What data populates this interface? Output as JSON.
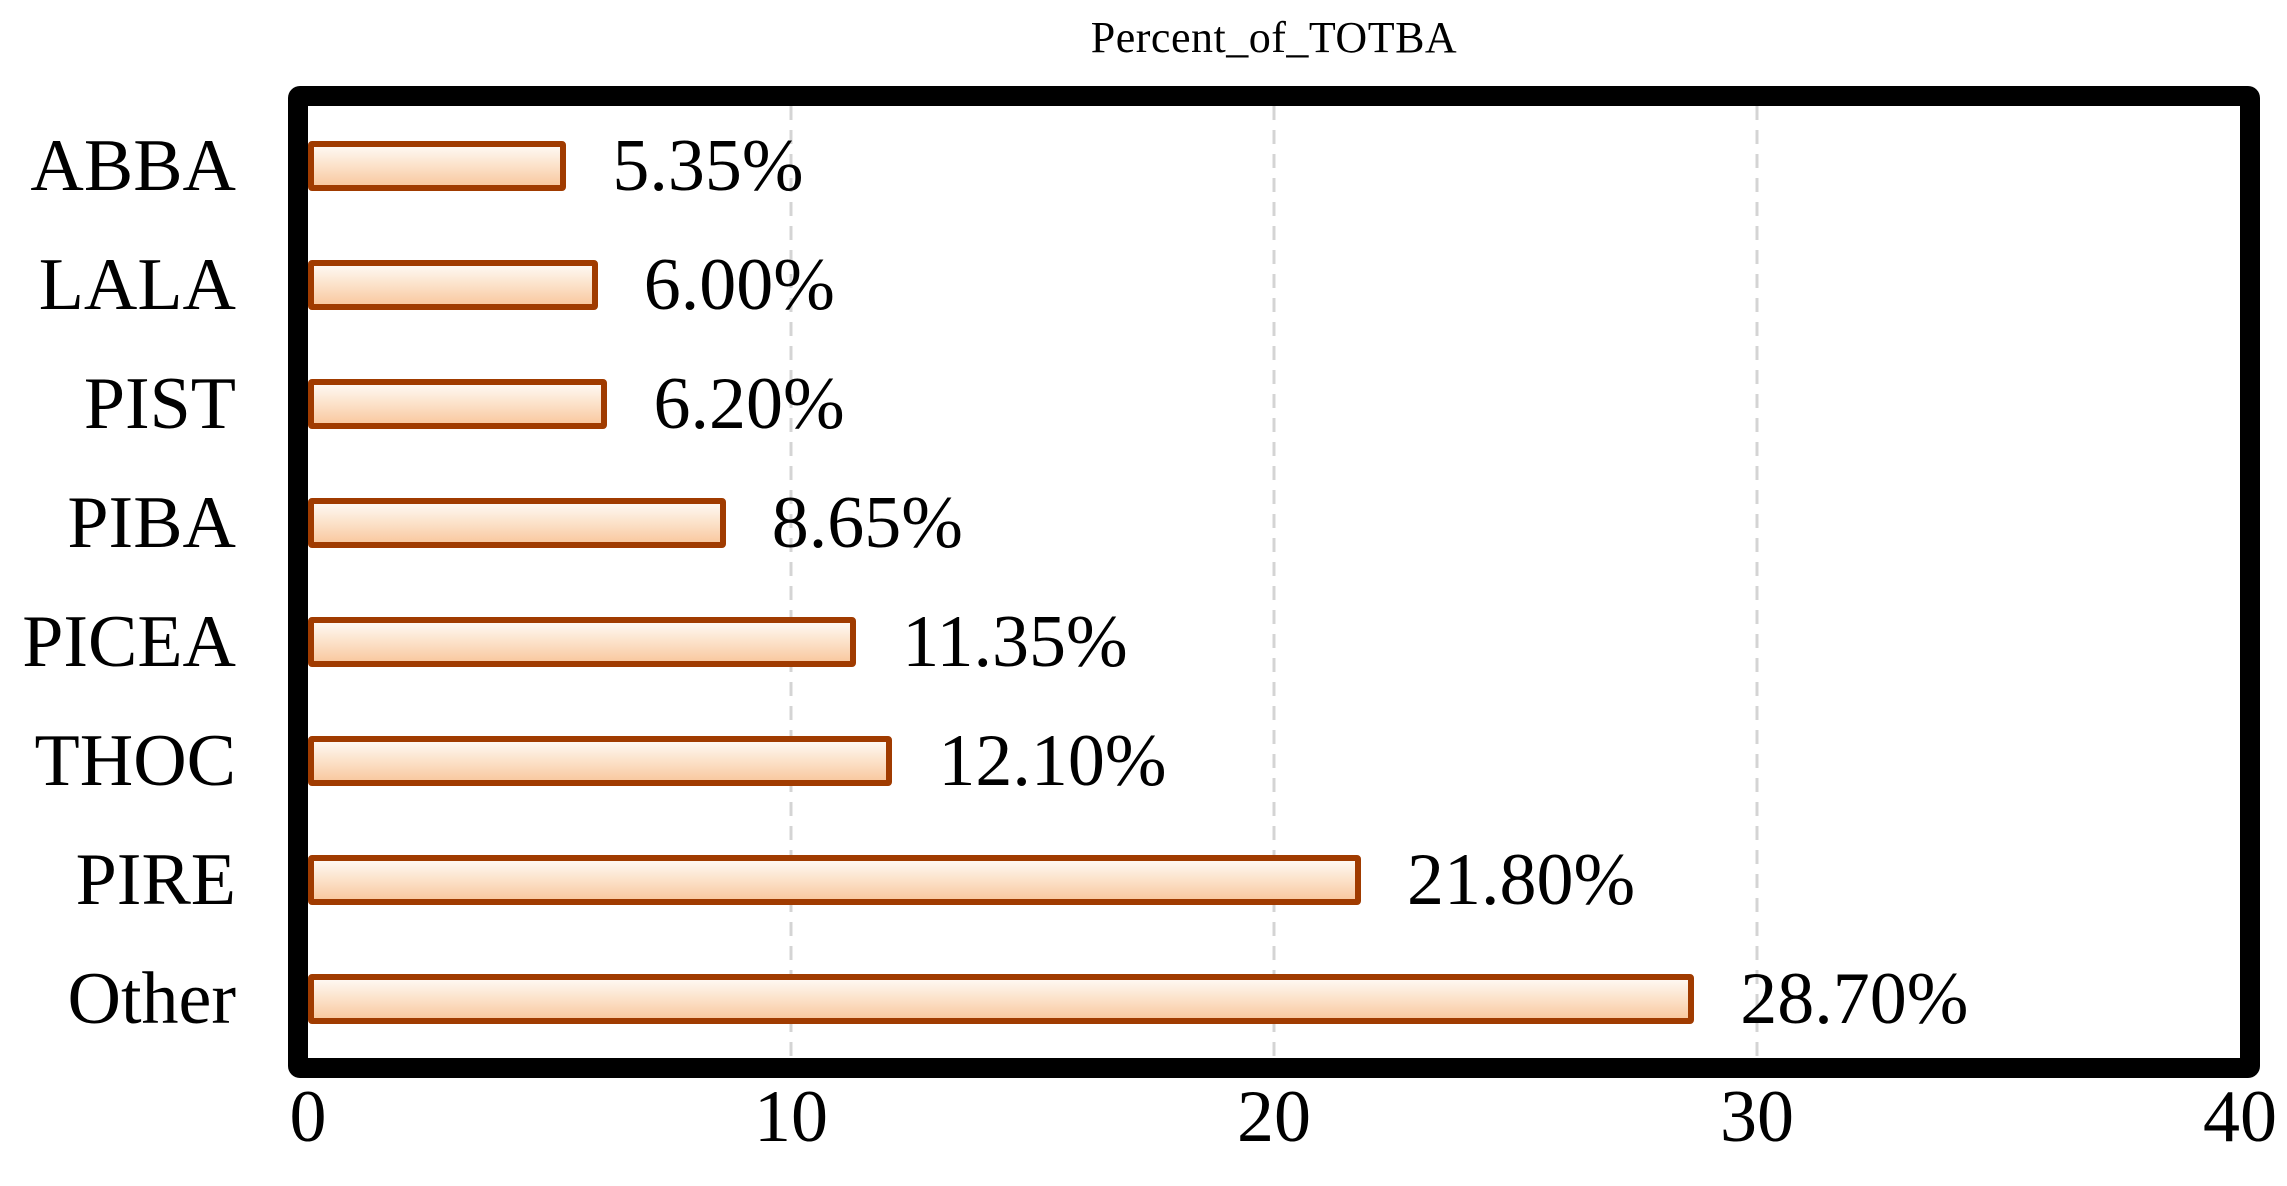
{
  "chart_data": {
    "type": "bar",
    "orientation": "horizontal",
    "title": "Percent_of_TOTBA",
    "categories": [
      "ABBA",
      "LALA",
      "PIST",
      "PIBA",
      "PICEA",
      "THOC",
      "PIRE",
      "Other"
    ],
    "values": [
      5.35,
      6.0,
      6.2,
      8.65,
      11.35,
      12.1,
      21.8,
      28.7
    ],
    "data_labels": [
      "5.35%",
      "6.00%",
      "6.20%",
      "8.65%",
      "11.35%",
      "12.10%",
      "21.80%",
      "28.70%"
    ],
    "xlabel": "",
    "ylabel": "",
    "xlim": [
      0,
      40
    ],
    "xticks": [
      0,
      10,
      20,
      30,
      40
    ],
    "xtick_labels": [
      "0",
      "10",
      "20",
      "30",
      "40"
    ],
    "grid": "vertical dashed gridlines at 10, 20, 30",
    "legend": "none",
    "colors": {
      "bar_fill_top": "#fef8f2",
      "bar_fill_bottom": "#f9c9a1",
      "bar_border": "#a03b00",
      "frame_border": "#000000",
      "gridline": "#d4d4d4",
      "text": "#000000",
      "background": "#ffffff"
    }
  }
}
